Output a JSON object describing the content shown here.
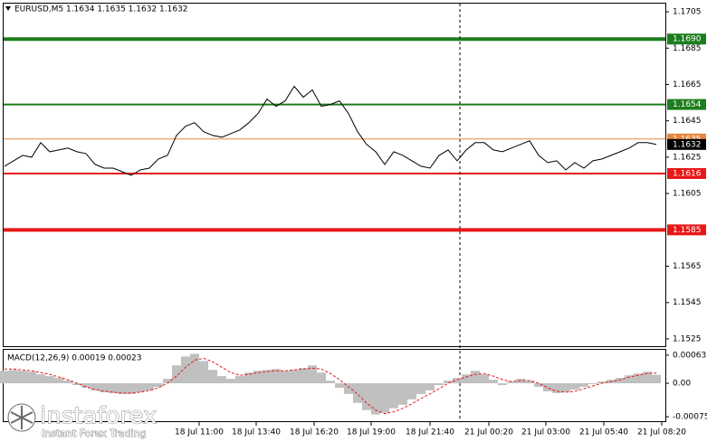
{
  "chart_data": [
    {
      "type": "line",
      "title": "EURUSD,M5  1.1634 1.1635 1.1632 1.1632",
      "color": "#000000",
      "values": [
        1.162,
        1.1623,
        1.1626,
        1.1625,
        1.1633,
        1.1628,
        1.1629,
        1.163,
        1.1628,
        1.1627,
        1.1621,
        1.1619,
        1.1619,
        1.1617,
        1.1615,
        1.1618,
        1.1619,
        1.1624,
        1.1626,
        1.1637,
        1.1642,
        1.1644,
        1.1639,
        1.1637,
        1.1636,
        1.1638,
        1.164,
        1.1644,
        1.1649,
        1.1657,
        1.1653,
        1.1656,
        1.1664,
        1.1658,
        1.1662,
        1.1653,
        1.1654,
        1.1656,
        1.1649,
        1.1639,
        1.1632,
        1.1628,
        1.1621,
        1.1628,
        1.1626,
        1.1623,
        1.162,
        1.1619,
        1.1626,
        1.1629,
        1.1623,
        1.1629,
        1.1633,
        1.1633,
        1.1629,
        1.1628,
        1.163,
        1.1632,
        1.1634,
        1.1626,
        1.1622,
        1.1623,
        1.1618,
        1.1622,
        1.1619,
        1.1623,
        1.1624,
        1.1626,
        1.1628,
        1.163,
        1.1633,
        1.1633,
        1.1632
      ],
      "xlim": [
        0,
        73
      ],
      "xticks": [
        {
          "value": 21.5,
          "label": "18 Jul 11:00"
        },
        {
          "value": 27.8,
          "label": "18 Jul 13:40"
        },
        {
          "value": 34.2,
          "label": "18 Jul 16:20"
        },
        {
          "value": 40.5,
          "label": "18 Jul 19:00"
        },
        {
          "value": 47,
          "label": "18 Jul 21:40"
        },
        {
          "value": 53.5,
          "label": "21 Jul 00:20"
        },
        {
          "value": 59.8,
          "label": "21 Jul 03:00"
        },
        {
          "value": 66.2,
          "label": "21 Jul 05:40"
        },
        {
          "value": 72.6,
          "label": "21 Jul 08:20"
        }
      ],
      "vline": 50.3,
      "ylim": [
        1.1521,
        1.1709
      ],
      "yticks": [
        1.1705,
        1.1685,
        1.1665,
        1.1645,
        1.1625,
        1.1605,
        1.1565,
        1.1545,
        1.1525
      ],
      "levels": [
        {
          "value": 1.169,
          "label": "1.1690",
          "color": "#1e7d1e",
          "width": 4
        },
        {
          "value": 1.1654,
          "color": "#1e7d1e",
          "width": 2
        },
        {
          "value": 1.1635,
          "color": "#e8873c",
          "width": 1
        },
        {
          "value": 1.1616,
          "color": "#e81818",
          "width": 2
        },
        {
          "value": 1.1585,
          "color": "#e81818",
          "width": 4
        }
      ],
      "current_price": 1.1632,
      "watermark": {
        "brand": "instaforex",
        "tagline": "Instant Forex Trading"
      }
    },
    {
      "type": "macd",
      "title": "MACD(12,26,9) 0.00019 0.00023",
      "histogram_color": "#c0c0c0",
      "signal_color": "#e81818",
      "histogram": [
        0.00028,
        0.0003,
        0.00028,
        0.00026,
        0.0002,
        0.00016,
        0.00012,
        6e-05,
        -4e-05,
        -0.0001,
        -0.00016,
        -0.0002,
        -0.00022,
        -0.00024,
        -0.00024,
        -0.0002,
        -0.00016,
        -8e-05,
        0.0001,
        0.0004,
        0.0006,
        0.00066,
        0.0005,
        0.0003,
        0.00016,
        0.0001,
        0.00016,
        0.00024,
        0.00028,
        0.0003,
        0.00032,
        0.00028,
        0.0003,
        0.00034,
        0.0004,
        0.00024,
        6e-05,
        -0.0001,
        -0.00024,
        -0.00044,
        -0.0006,
        -0.0007,
        -0.00066,
        -0.00056,
        -0.00048,
        -0.00036,
        -0.00024,
        -0.00016,
        -4e-05,
        6e-05,
        0.00012,
        0.0002,
        0.00028,
        0.0002,
        8e-05,
        -4e-05,
        4e-05,
        0.0001,
        6e-05,
        -8e-05,
        -0.00018,
        -0.00022,
        -0.0002,
        -0.00014,
        -8e-05,
        -2e-05,
        4e-05,
        8e-05,
        0.00012,
        0.00018,
        0.00022,
        0.00026,
        0.00019
      ],
      "signal": [
        0.00032,
        0.00032,
        0.0003,
        0.00028,
        0.00024,
        0.0002,
        0.00014,
        8e-05,
        0,
        -8e-05,
        -0.00014,
        -0.00018,
        -0.0002,
        -0.00022,
        -0.00022,
        -0.0002,
        -0.00016,
        -0.0001,
        0,
        0.00016,
        0.00036,
        0.00052,
        0.00056,
        0.00048,
        0.00036,
        0.00024,
        0.00018,
        0.0002,
        0.00024,
        0.00026,
        0.00028,
        0.00028,
        0.0003,
        0.00032,
        0.00034,
        0.00032,
        0.00022,
        8e-05,
        -8e-05,
        -0.00024,
        -0.00044,
        -0.0006,
        -0.00068,
        -0.00064,
        -0.00056,
        -0.00046,
        -0.00034,
        -0.00024,
        -0.00012,
        0,
        8e-05,
        0.00014,
        0.0002,
        0.00022,
        0.00016,
        8e-05,
        4e-05,
        6e-05,
        6e-05,
        0,
        -0.0001,
        -0.00018,
        -0.0002,
        -0.00018,
        -0.00012,
        -6e-05,
        0,
        4e-05,
        8e-05,
        0.00014,
        0.00018,
        0.00022,
        0.00023
      ],
      "ylim": [
        -0.00085,
        0.00073
      ],
      "yticks": [
        0.00063,
        {
          "value": 0,
          "label": "0.00"
        },
        -0.00075
      ]
    }
  ]
}
